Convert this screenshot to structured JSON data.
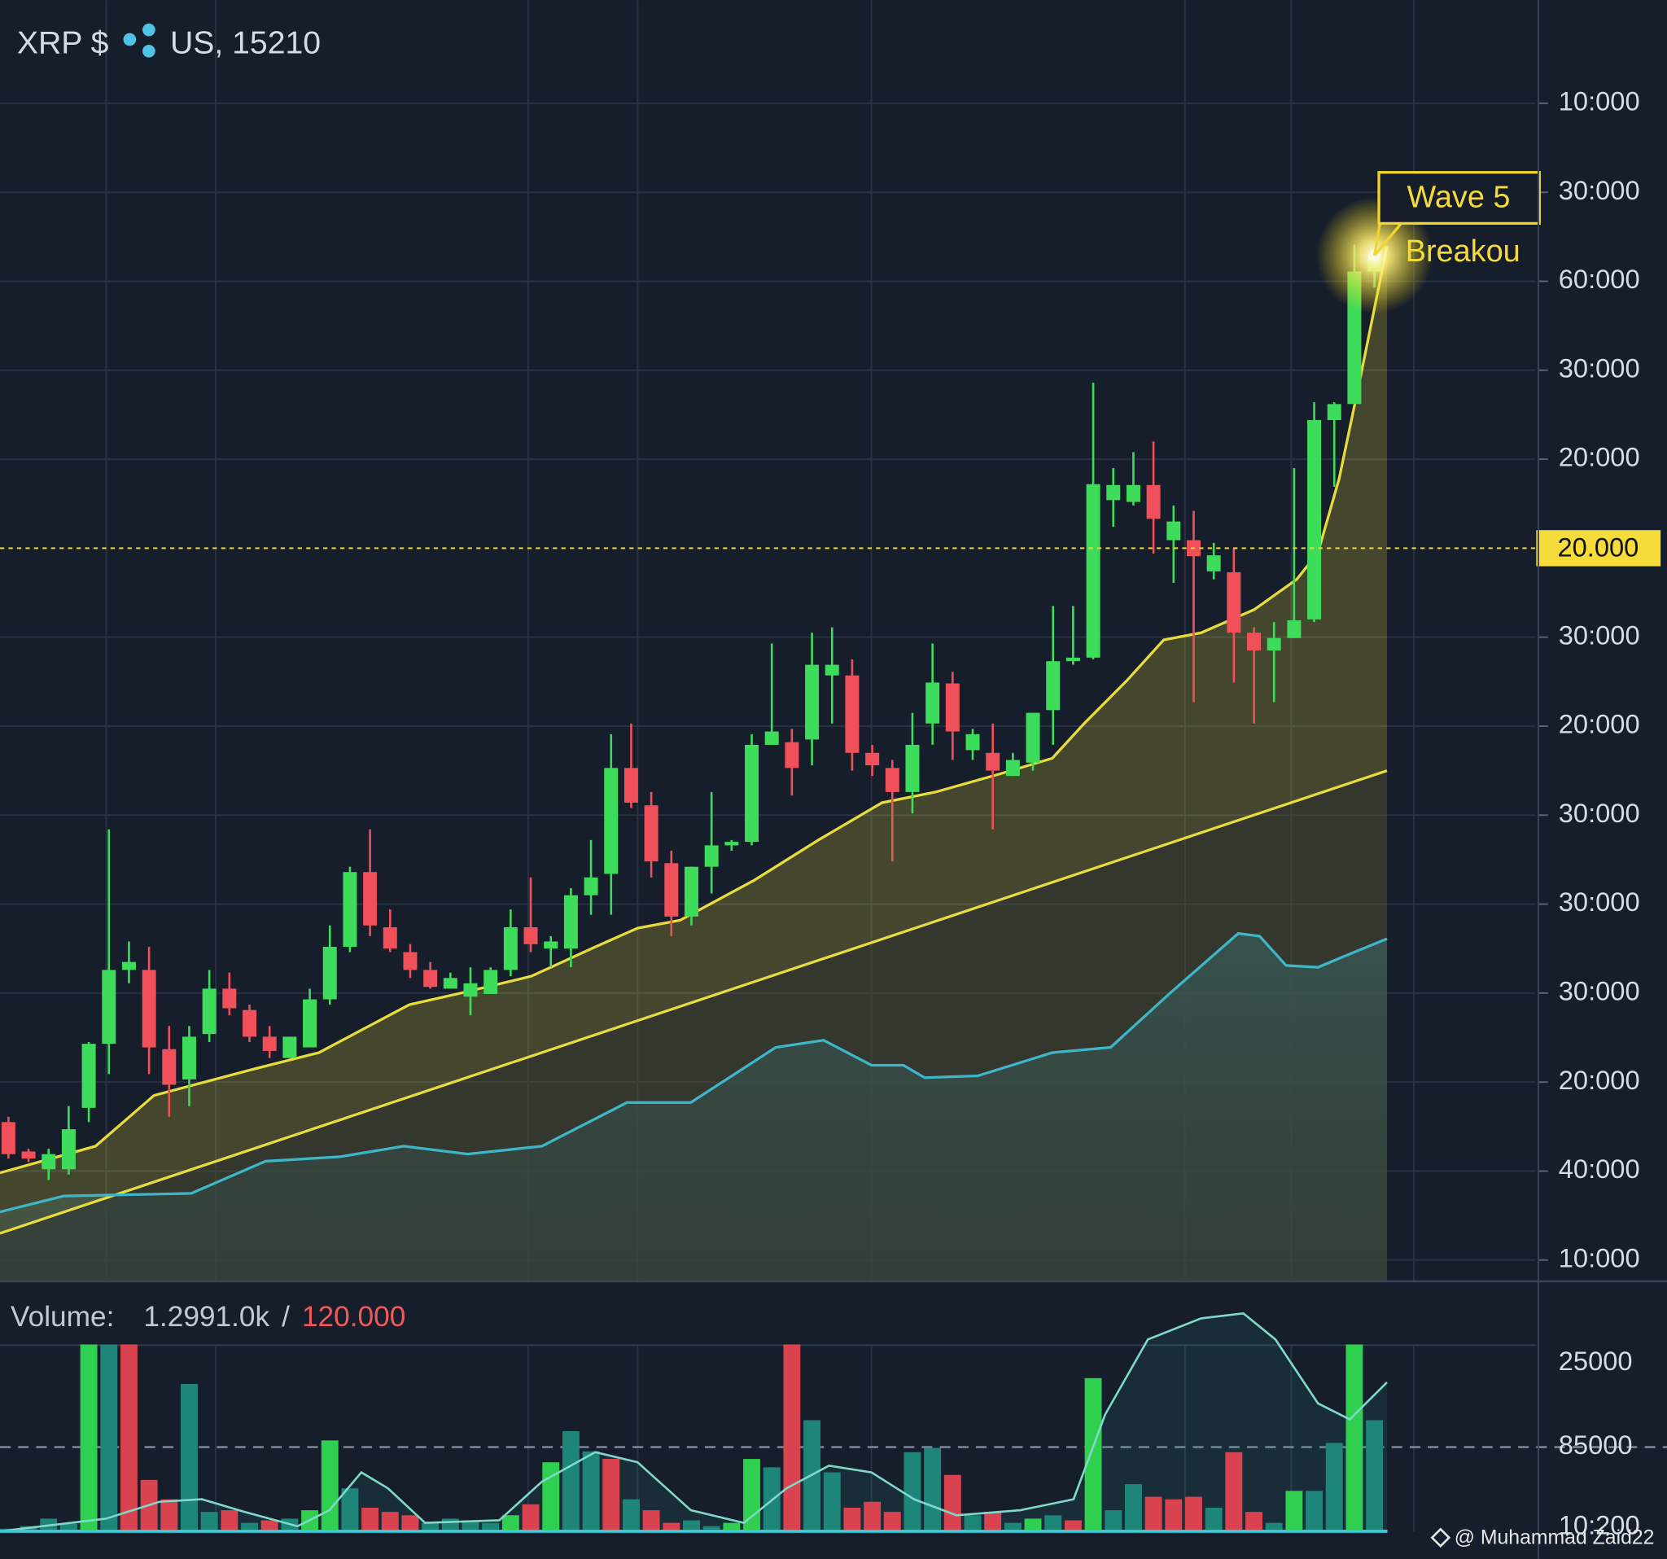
{
  "header": {
    "symbol": "XRP $",
    "pair": "US, 15210",
    "volume_label": "Volume:",
    "volume_value": "1.2991.0k",
    "volume_sep": "/",
    "volume_total": "120.000",
    "watermark": "@ Muhammad Zaid22"
  },
  "chart_data": [
    {
      "type": "candlestick",
      "up_color": "#3ddc5a",
      "down_color": "#f0505a",
      "x": [
        0,
        1,
        2,
        3,
        4,
        5,
        6,
        7,
        8,
        9,
        10,
        11,
        12,
        13,
        14,
        15,
        16,
        17,
        18,
        19,
        20,
        21,
        22,
        23,
        24,
        25,
        26,
        27,
        28,
        29,
        30,
        31,
        32,
        33,
        34,
        35,
        36,
        37,
        38,
        39,
        40,
        41,
        42,
        43,
        44,
        45,
        46,
        47,
        48,
        49,
        50,
        51,
        52,
        53,
        54,
        55,
        56,
        57,
        58,
        59,
        60,
        61,
        62,
        63,
        64,
        65,
        66,
        67,
        68
      ],
      "open": [
        1.55,
        1.22,
        1.02,
        1.02,
        1.71,
        2.43,
        3.26,
        3.26,
        2.37,
        2.03,
        2.54,
        3.05,
        2.81,
        2.51,
        2.27,
        2.39,
        2.93,
        3.52,
        4.36,
        3.74,
        3.46,
        3.26,
        3.05,
        2.96,
        2.99,
        3.26,
        3.74,
        3.5,
        3.5,
        4.1,
        4.34,
        5.53,
        5.11,
        4.46,
        3.86,
        4.42,
        4.66,
        4.7,
        5.79,
        5.82,
        5.85,
        6.57,
        6.57,
        5.7,
        5.53,
        5.26,
        6.03,
        6.48,
        5.73,
        5.7,
        5.44,
        5.59,
        6.18,
        6.73,
        6.77,
        8.54,
        8.52,
        8.71,
        8.09,
        8.09,
        7.74,
        7.73,
        7.05,
        6.85,
        6.99,
        7.2,
        9.44,
        9.62,
        11.11
      ],
      "high": [
        1.61,
        1.25,
        1.25,
        1.73,
        2.45,
        4.84,
        3.58,
        3.52,
        2.63,
        2.63,
        3.26,
        3.23,
        2.87,
        2.63,
        2.51,
        3.05,
        3.76,
        4.42,
        4.84,
        3.94,
        3.55,
        3.35,
        3.23,
        3.29,
        3.29,
        3.94,
        4.3,
        3.64,
        4.18,
        4.72,
        5.91,
        6.03,
        5.26,
        4.6,
        4.42,
        5.26,
        4.72,
        5.91,
        6.93,
        5.97,
        7.05,
        7.11,
        6.75,
        5.79,
        5.62,
        6.15,
        6.93,
        6.61,
        5.97,
        6.03,
        5.7,
        6.15,
        7.35,
        7.35,
        9.86,
        8.9,
        9.08,
        9.2,
        8.48,
        8.42,
        8.06,
        8.0,
        7.11,
        7.17,
        8.9,
        9.64,
        9.64,
        11.41,
        11.41
      ],
      "low": [
        1.14,
        1.1,
        0.9,
        0.96,
        1.55,
        2.09,
        3.11,
        2.09,
        1.61,
        1.73,
        2.45,
        2.75,
        2.45,
        2.27,
        2.27,
        2.39,
        2.87,
        3.46,
        3.64,
        3.46,
        3.17,
        3.05,
        3.05,
        2.75,
        2.99,
        3.19,
        3.46,
        3.29,
        3.29,
        3.88,
        3.88,
        5.08,
        4.3,
        3.64,
        3.76,
        4.12,
        4.6,
        4.66,
        5.79,
        5.22,
        5.56,
        6.03,
        5.5,
        5.44,
        4.48,
        5.02,
        5.79,
        5.62,
        5.62,
        4.84,
        5.44,
        5.5,
        5.79,
        6.69,
        6.75,
        8.24,
        8.48,
        7.94,
        7.61,
        6.27,
        7.65,
        6.49,
        6.03,
        6.27,
        6.99,
        7.17,
        8.69,
        9.62,
        10.93
      ],
      "close": [
        1.19,
        1.14,
        1.19,
        1.47,
        2.43,
        3.26,
        3.35,
        2.39,
        1.97,
        2.51,
        3.05,
        2.83,
        2.51,
        2.35,
        2.51,
        2.93,
        3.52,
        4.36,
        3.76,
        3.5,
        3.26,
        3.07,
        3.17,
        3.11,
        3.26,
        3.74,
        3.55,
        3.58,
        4.1,
        4.3,
        5.53,
        5.14,
        4.48,
        3.86,
        4.42,
        4.66,
        4.7,
        5.79,
        5.94,
        5.53,
        6.69,
        6.69,
        5.7,
        5.56,
        5.26,
        5.79,
        6.49,
        5.94,
        5.91,
        5.5,
        5.62,
        6.15,
        6.73,
        6.77,
        8.72,
        8.71,
        8.71,
        8.33,
        8.3,
        7.91,
        7.92,
        7.05,
        6.85,
        6.99,
        7.19,
        9.44,
        9.62,
        11.11,
        11.29
      ],
      "overlays": [
        {
          "color": "#e8dc3c",
          "x": [
            -0.42,
            4.34,
            7.25,
            12.28,
            15.45,
            19.95,
            22.33,
            26.03,
            29.21,
            31.32,
            33.44,
            37.14,
            40.32,
            43.49,
            46.14,
            49.31,
            51.96,
            53.55,
            55.66,
            57.51,
            59.37,
            62.01,
            64.13,
            65.19,
            66.24,
            67.3,
            68.62
          ],
          "values": [
            0.98,
            1.28,
            1.85,
            2.15,
            2.33,
            2.87,
            2.99,
            3.19,
            3.52,
            3.73,
            3.82,
            4.27,
            4.72,
            5.14,
            5.26,
            5.46,
            5.64,
            6.03,
            6.51,
            6.97,
            7.05,
            7.31,
            7.65,
            7.95,
            8.78,
            9.92,
            11.39
          ]
        },
        {
          "color": "#e8dc3c",
          "x": [
            -0.42,
            68.62
          ],
          "values": [
            0.3,
            5.5
          ]
        },
        {
          "color": "#3fb6c8",
          "x": [
            -0.42,
            2.75,
            9.1,
            12.8,
            16.51,
            19.68,
            22.86,
            26.56,
            30.79,
            33.97,
            38.2,
            40.58,
            42.96,
            44.55,
            45.61,
            48.25,
            51.96,
            54.87,
            57.78,
            61.22,
            62.28,
            63.6,
            65.19,
            66.77,
            68.62
          ],
          "values": [
            0.54,
            0.72,
            0.75,
            1.11,
            1.16,
            1.28,
            1.19,
            1.28,
            1.77,
            1.77,
            2.39,
            2.47,
            2.19,
            2.19,
            2.05,
            2.07,
            2.33,
            2.39,
            2.99,
            3.67,
            3.64,
            3.31,
            3.29,
            3.44,
            3.61
          ]
        }
      ],
      "xlim": [
        -0.42,
        76
      ],
      "xticks": [
        4.87,
        10.32,
        25.87,
        31.32,
        42.96,
        58.57,
        63.86,
        69.96
      ],
      "ylim": [
        -0.24,
        14.16
      ],
      "yticks": [
        {
          "value": 0,
          "label": "10:000"
        },
        {
          "value": 1,
          "label": "40:000"
        },
        {
          "value": 2,
          "label": "20:000"
        },
        {
          "value": 3,
          "label": "30:000"
        },
        {
          "value": 4,
          "label": "30:000"
        },
        {
          "value": 5,
          "label": "30:000"
        },
        {
          "value": 6,
          "label": "20:000"
        },
        {
          "value": 7,
          "label": "30:000"
        },
        {
          "value": 9,
          "label": "20:000"
        },
        {
          "value": 10,
          "label": "30:000"
        },
        {
          "value": 11,
          "label": "60:000"
        },
        {
          "value": 12,
          "label": "30:000"
        },
        {
          "value": 13,
          "label": "10:000"
        }
      ],
      "price_line": {
        "value": 8,
        "label": "20.000"
      },
      "annotations": [
        "Wave 5",
        "Breakou"
      ],
      "grid": true
    },
    {
      "type": "bar",
      "x": [
        0,
        1,
        2,
        3,
        4,
        5,
        6,
        7,
        8,
        9,
        10,
        11,
        12,
        13,
        14,
        15,
        16,
        17,
        18,
        19,
        20,
        21,
        22,
        23,
        24,
        25,
        26,
        27,
        28,
        29,
        30,
        31,
        32,
        33,
        34,
        35,
        36,
        37,
        38,
        39,
        40,
        41,
        42,
        43,
        44,
        45,
        46,
        47,
        48,
        49,
        50,
        51,
        52,
        53,
        54,
        55,
        56,
        57,
        58,
        59,
        60,
        61,
        62,
        63,
        64,
        65,
        66,
        67,
        68
      ],
      "values": [
        0.03,
        0.06,
        0.15,
        0.09,
        2.22,
        2.22,
        2.22,
        0.61,
        0.38,
        1.75,
        0.23,
        0.25,
        0.1,
        0.13,
        0.15,
        0.25,
        1.08,
        0.51,
        0.28,
        0.23,
        0.19,
        0.1,
        0.15,
        0.13,
        0.1,
        0.19,
        0.32,
        0.82,
        1.19,
        0.95,
        0.86,
        0.38,
        0.25,
        0.1,
        0.13,
        0.06,
        0.1,
        0.86,
        0.76,
        2.22,
        1.32,
        0.7,
        0.28,
        0.35,
        0.23,
        0.94,
        0.99,
        0.67,
        0.19,
        0.23,
        0.1,
        0.15,
        0.19,
        0.13,
        1.82,
        0.25,
        0.56,
        0.41,
        0.38,
        0.41,
        0.28,
        0.94,
        0.23,
        0.1,
        0.48,
        0.48,
        1.05,
        2.22,
        1.32
      ],
      "colors": [
        "#1e8679",
        "#1e8679",
        "#1e8679",
        "#1e8679",
        "#2fcf4f",
        "#1e8679",
        "#d9434f",
        "#d9434f",
        "#d9434f",
        "#1e8679",
        "#1e8679",
        "#d9434f",
        "#1e8679",
        "#d9434f",
        "#1e8679",
        "#2fcf4f",
        "#2fcf4f",
        "#1e8679",
        "#d9434f",
        "#d9434f",
        "#d9434f",
        "#1e8679",
        "#1e8679",
        "#1e8679",
        "#1e8679",
        "#2fcf4f",
        "#d9434f",
        "#2fcf4f",
        "#1e8679",
        "#1e8679",
        "#d9434f",
        "#1e8679",
        "#d9434f",
        "#d9434f",
        "#1e8679",
        "#1e8679",
        "#2fcf4f",
        "#2fcf4f",
        "#1e8679",
        "#d9434f",
        "#1e8679",
        "#1e8679",
        "#d9434f",
        "#d9434f",
        "#d9434f",
        "#1e8679",
        "#1e8679",
        "#d9434f",
        "#1e8679",
        "#d9434f",
        "#1e8679",
        "#2fcf4f",
        "#1e8679",
        "#d9434f",
        "#2fcf4f",
        "#1e8679",
        "#1e8679",
        "#d9434f",
        "#d9434f",
        "#d9434f",
        "#1e8679",
        "#d9434f",
        "#d9434f",
        "#1e8679",
        "#2fcf4f",
        "#1e8679",
        "#1e8679",
        "#2fcf4f",
        "#1e8679"
      ],
      "series": [
        {
          "color": "#7fd8c8",
          "x": [
            -0.42,
            4.87,
            7.51,
            9.63,
            11.75,
            14.39,
            15.98,
            17.57,
            18.89,
            20.74,
            24.44,
            26.56,
            29.21,
            31.32,
            33.97,
            36.61,
            38.73,
            40.85,
            42.96,
            45.08,
            47.2,
            50.37,
            53.02,
            54.6,
            56.72,
            59.37,
            61.48,
            63.07,
            65.19,
            66.77,
            68.62
          ],
          "values": [
            0,
            0.15,
            0.35,
            0.38,
            0.23,
            0.06,
            0.25,
            0.7,
            0.51,
            0.1,
            0.13,
            0.59,
            0.94,
            0.82,
            0.25,
            0.1,
            0.51,
            0.78,
            0.7,
            0.38,
            0.19,
            0.25,
            0.38,
            1.39,
            2.28,
            2.53,
            2.59,
            2.28,
            1.52,
            1.33,
            1.77
          ]
        }
      ],
      "xlim": [
        -0.42,
        76
      ],
      "ylim": [
        0,
        2.97
      ],
      "yticks": [
        {
          "value": 0,
          "label": "10:200"
        },
        {
          "value": 1,
          "label": "85000"
        },
        {
          "value": 2,
          "label": "25000"
        }
      ],
      "ref_line": 1
    }
  ]
}
